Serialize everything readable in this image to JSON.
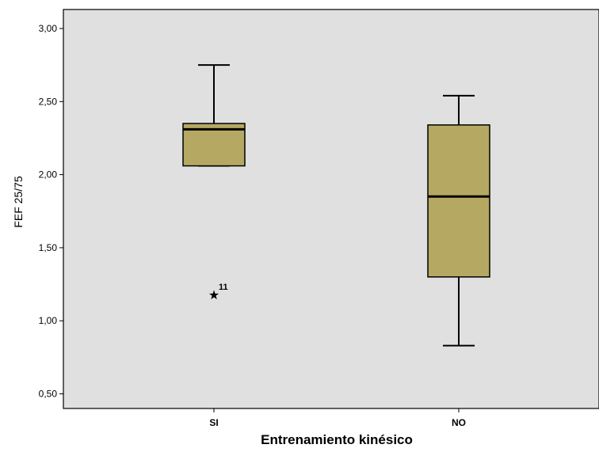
{
  "chart_data": {
    "type": "boxplot",
    "xlabel": "Entrenamiento kinésico",
    "ylabel": "FEF 25/75",
    "ylim": [
      0.4,
      3.13
    ],
    "yticks": [
      0.5,
      1.0,
      1.5,
      2.0,
      2.5,
      3.0
    ],
    "ytick_labels": [
      "0,50",
      "1,00",
      "1,50",
      "2,00",
      "2,50",
      "3,00"
    ],
    "grid": false,
    "colors": {
      "plot_background": "#e0e0e0",
      "box_fill": "#b5a862",
      "line": "#000000"
    },
    "categories": [
      "SI",
      "NO"
    ],
    "boxes": [
      {
        "category": "SI",
        "whisker_low": 2.06,
        "q1": 2.06,
        "median": 2.31,
        "q3": 2.35,
        "whisker_high": 2.75,
        "outliers": [
          {
            "value": 1.18,
            "label": "11",
            "marker": "star"
          }
        ]
      },
      {
        "category": "NO",
        "whisker_low": 0.83,
        "q1": 1.3,
        "median": 1.85,
        "q3": 2.34,
        "whisker_high": 2.54,
        "outliers": []
      }
    ]
  }
}
